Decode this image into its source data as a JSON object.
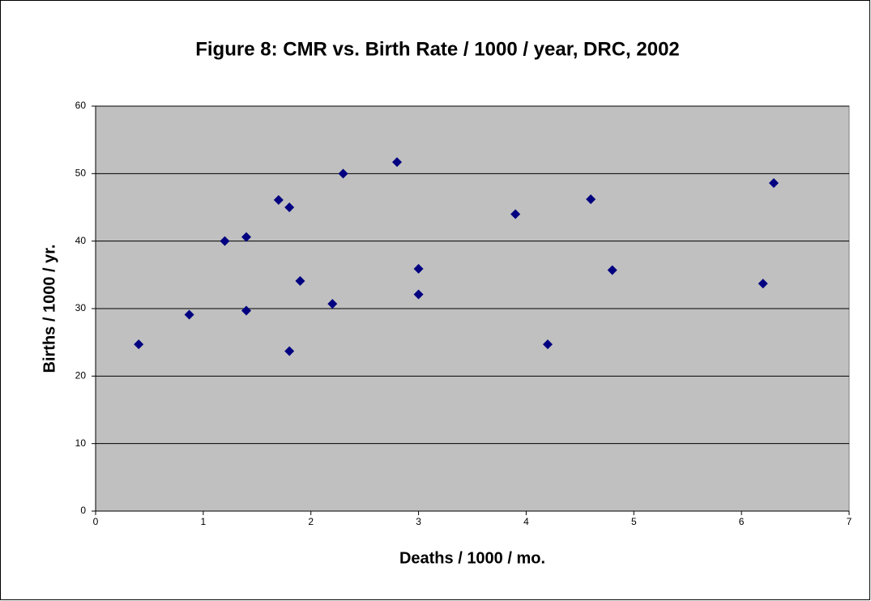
{
  "chart_data": {
    "type": "scatter",
    "title": "Figure 8: CMR vs. Birth Rate / 1000 / year, DRC, 2002",
    "x_label": "Deaths / 1000 / mo.",
    "y_label": "Births / 1000 / yr.",
    "x": [
      0.4,
      0.87,
      1.2,
      1.4,
      1.4,
      1.7,
      1.8,
      1.8,
      1.9,
      2.2,
      2.3,
      2.8,
      3,
      3,
      3.9,
      4.2,
      4.6,
      4.8,
      6.2,
      6.3
    ],
    "values": [
      24.7,
      29.1,
      40,
      40.6,
      29.7,
      46.1,
      45,
      23.7,
      34.1,
      30.7,
      50,
      51.7,
      35.9,
      32.1,
      44,
      24.7,
      46.2,
      35.7,
      33.7,
      48.6
    ],
    "color": "#000080",
    "xlim": [
      0,
      7
    ],
    "xticks": [
      0,
      1,
      2,
      3,
      4,
      5,
      6,
      7
    ],
    "ylim": [
      0,
      60
    ],
    "yticks": [
      0,
      10,
      20,
      30,
      40,
      50,
      60
    ],
    "grid": true
  }
}
